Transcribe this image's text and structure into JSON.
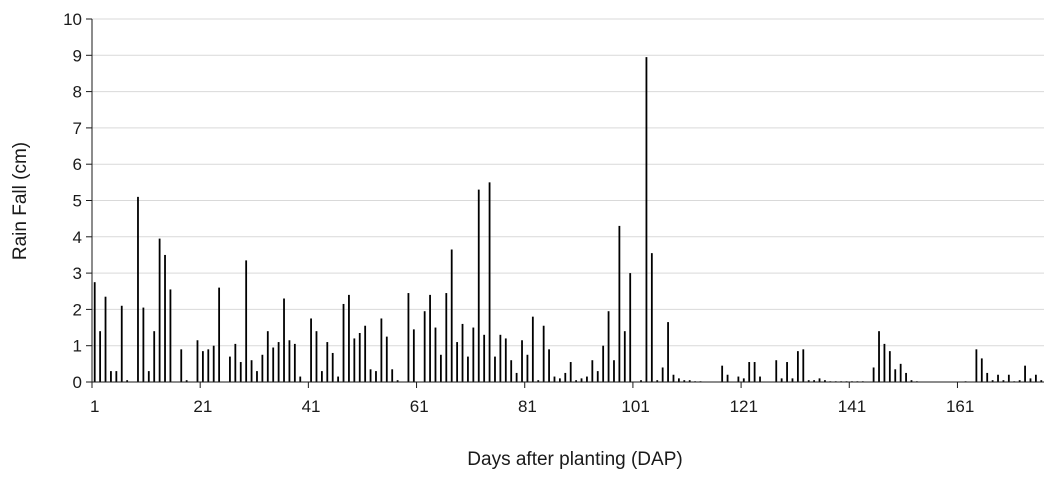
{
  "chart_data": {
    "type": "bar",
    "title": "",
    "xlabel": "Days after planting (DAP)",
    "ylabel": "Rain Fall (cm)",
    "ylim": [
      0,
      10
    ],
    "xlim": [
      1,
      176
    ],
    "grid": true,
    "legend": "none",
    "x_ticks": [
      1,
      21,
      41,
      61,
      81,
      101,
      121,
      141,
      161
    ],
    "y_ticks": [
      0,
      1,
      2,
      3,
      4,
      5,
      6,
      7,
      8,
      9,
      10
    ],
    "bar_color": "#000000",
    "gridline_color": "#d9d9d9",
    "x": [
      1,
      2,
      3,
      4,
      5,
      6,
      7,
      9,
      10,
      11,
      12,
      13,
      14,
      15,
      17,
      18,
      20,
      21,
      22,
      23,
      24,
      26,
      27,
      28,
      29,
      30,
      31,
      32,
      33,
      34,
      35,
      36,
      37,
      38,
      39,
      41,
      42,
      43,
      44,
      45,
      46,
      47,
      48,
      49,
      50,
      51,
      52,
      53,
      54,
      55,
      56,
      57,
      59,
      60,
      62,
      63,
      64,
      65,
      66,
      67,
      68,
      69,
      70,
      71,
      72,
      73,
      74,
      75,
      76,
      77,
      78,
      79,
      80,
      81,
      82,
      83,
      84,
      85,
      86,
      87,
      88,
      89,
      90,
      91,
      92,
      93,
      94,
      95,
      96,
      97,
      98,
      99,
      100,
      102,
      103,
      104,
      105,
      106,
      107,
      108,
      109,
      110,
      111,
      112,
      113,
      117,
      118,
      120,
      121,
      122,
      123,
      124,
      127,
      128,
      129,
      130,
      131,
      132,
      133,
      134,
      135,
      136,
      137,
      138,
      139,
      140,
      141,
      142,
      143,
      145,
      146,
      147,
      148,
      149,
      150,
      151,
      152,
      153,
      162,
      164,
      165,
      166,
      167,
      168,
      169,
      170,
      171,
      172,
      173,
      174,
      175,
      176
    ],
    "values": [
      2.75,
      1.4,
      2.35,
      0.3,
      0.3,
      2.1,
      0.05,
      5.1,
      2.05,
      0.3,
      1.4,
      3.95,
      3.5,
      2.55,
      0.9,
      0.05,
      1.15,
      0.85,
      0.9,
      1.0,
      2.6,
      0.7,
      1.05,
      0.55,
      3.35,
      0.6,
      0.3,
      0.75,
      1.4,
      0.95,
      1.1,
      2.3,
      1.15,
      1.05,
      0.15,
      1.75,
      1.4,
      0.3,
      1.1,
      0.8,
      0.15,
      2.15,
      2.4,
      1.2,
      1.35,
      1.55,
      0.35,
      0.3,
      1.75,
      1.25,
      0.35,
      0.05,
      2.45,
      1.45,
      1.95,
      2.4,
      1.5,
      0.75,
      2.45,
      3.65,
      1.1,
      1.6,
      0.7,
      1.5,
      5.3,
      1.3,
      5.5,
      0.7,
      1.3,
      1.2,
      0.6,
      0.25,
      1.15,
      0.75,
      1.8,
      0.05,
      1.55,
      0.9,
      0.15,
      0.1,
      0.25,
      0.55,
      0.05,
      0.1,
      0.15,
      0.6,
      0.3,
      1.0,
      1.95,
      0.6,
      4.3,
      1.4,
      3.0,
      0.05,
      8.95,
      3.55,
      0.05,
      0.4,
      1.65,
      0.2,
      0.1,
      0.05,
      0.05,
      0.02,
      0.02,
      0.45,
      0.2,
      0.15,
      0.1,
      0.55,
      0.55,
      0.15,
      0.6,
      0.1,
      0.55,
      0.1,
      0.85,
      0.9,
      0.05,
      0.05,
      0.1,
      0.05,
      0.02,
      0.02,
      0.02,
      0.02,
      0.02,
      0.02,
      0.02,
      0.4,
      1.4,
      1.05,
      0.85,
      0.35,
      0.5,
      0.25,
      0.05,
      0.02,
      0.02,
      0.9,
      0.65,
      0.25,
      0.05,
      0.2,
      0.05,
      0.2,
      0.02,
      0.05,
      0.45,
      0.1,
      0.2,
      0.05
    ]
  }
}
